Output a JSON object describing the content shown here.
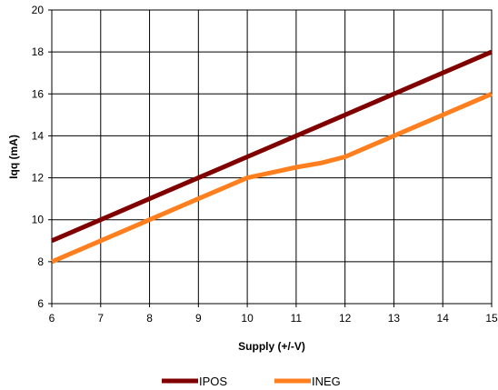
{
  "chart_data": {
    "type": "line",
    "xlabel": "Supply (+/-V)",
    "ylabel": "Iqq (mA)",
    "xlim": [
      6,
      15
    ],
    "ylim": [
      6,
      20
    ],
    "x_ticks": [
      6,
      7,
      8,
      9,
      10,
      11,
      12,
      13,
      14,
      15
    ],
    "y_ticks": [
      6,
      8,
      10,
      12,
      14,
      16,
      18,
      20
    ],
    "grid": true,
    "legend_position": "bottom",
    "series": [
      {
        "name": "IPOS",
        "color": "#800000",
        "x": [
          6,
          7,
          8,
          8.5,
          9,
          10,
          10.5,
          11,
          12,
          12.5,
          13,
          14,
          15
        ],
        "y": [
          9,
          10,
          11,
          11.5,
          12,
          13,
          13.5,
          14,
          15,
          15.5,
          16,
          17,
          18
        ]
      },
      {
        "name": "INEG",
        "color": "#ff7f1e",
        "x": [
          6,
          7,
          7.5,
          8,
          9,
          10,
          10.5,
          11,
          11.5,
          12,
          12.3,
          13,
          14,
          15
        ],
        "y": [
          8,
          9,
          9.5,
          10,
          11,
          12,
          12.25,
          12.5,
          12.7,
          13,
          13.3,
          14,
          15,
          16
        ]
      }
    ]
  }
}
